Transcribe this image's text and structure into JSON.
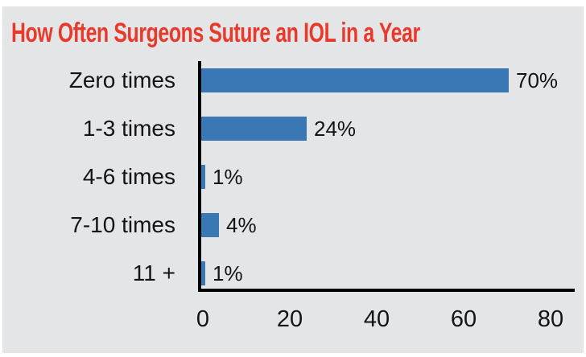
{
  "title": {
    "text": "How Often Surgeons Suture an IOL in a Year"
  },
  "colors": {
    "panel_bg": "#e4e5e6",
    "title": "#e8392b",
    "bar": "#3a77b5",
    "axis": "#000000",
    "text": "#141414"
  },
  "chart_data": {
    "type": "bar",
    "orientation": "horizontal",
    "title": "How Often Surgeons Suture an IOL in a Year",
    "categories": [
      "Zero times",
      "1-3 times",
      "4-6 times",
      "7-10 times",
      "11 +"
    ],
    "values": [
      70,
      24,
      1,
      4,
      1
    ],
    "value_labels": [
      "70%",
      "24%",
      "1%",
      "4%",
      "1%"
    ],
    "xlabel": "",
    "ylabel": "",
    "xlim": [
      0,
      80
    ],
    "xticks": [
      "0",
      "20",
      "40",
      "60",
      "80"
    ],
    "grid": false,
    "legend": false
  }
}
